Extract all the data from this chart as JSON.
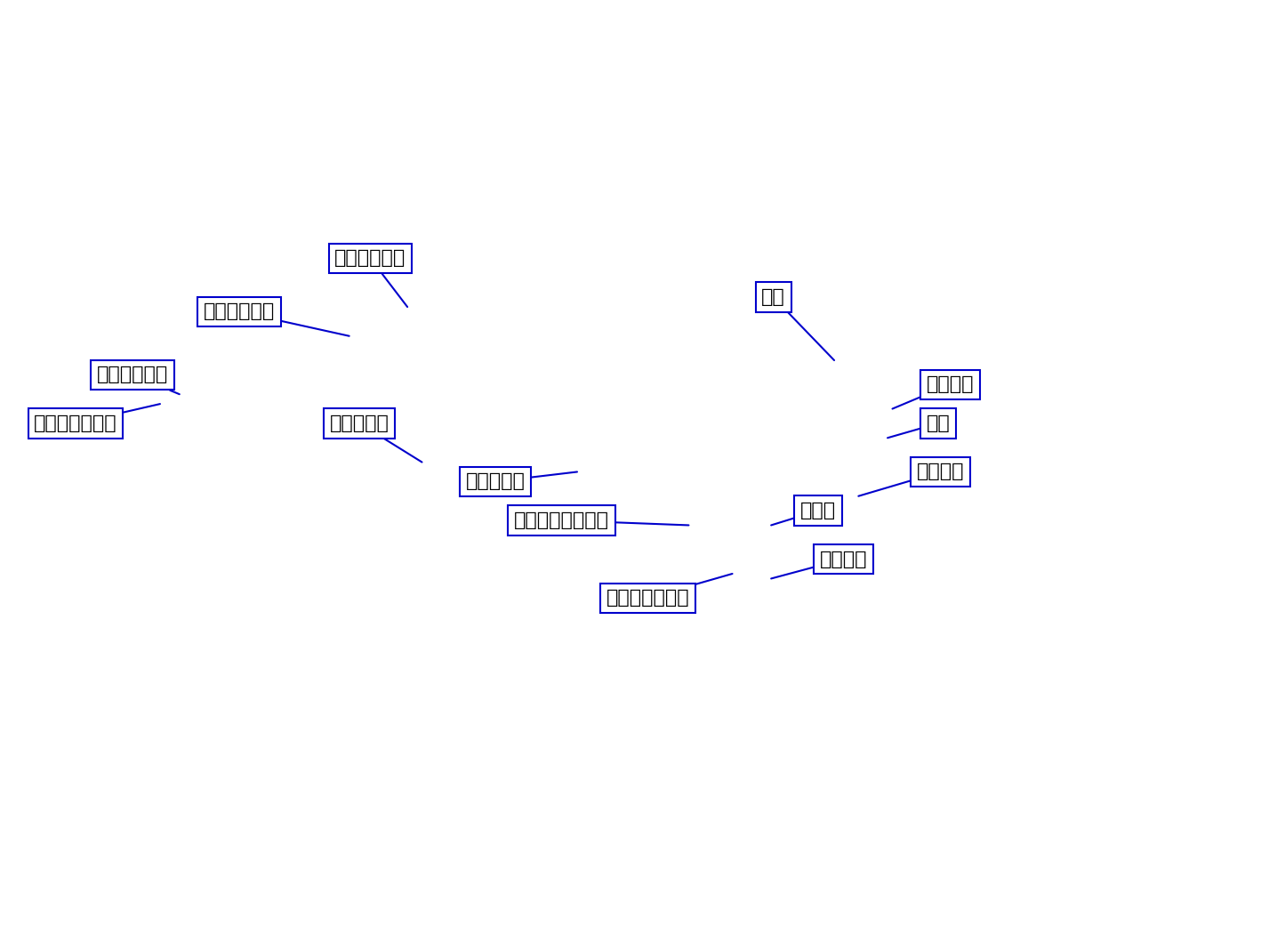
{
  "background_color": "#ffffff",
  "land_color": "#ffffff",
  "ocean_color": "#ffffff",
  "border_color_thick": "#000000",
  "border_color_thin": "#aaaaaa",
  "river_color": "#33aaff",
  "label_text_color": "#000000",
  "label_box_edge_color": "#0000cc",
  "label_box_face_color": "#ffffff",
  "arrow_color": "#0000cc",
  "map_extent_lon": [
    25,
    155
  ],
  "map_extent_lat": [
    -8,
    62
  ],
  "figsize": [
    14.18,
    10.5
  ],
  "dpi": 100,
  "fontsize": 16,
  "annotations": [
    {
      "label": "シルダリア川",
      "text_lon": 59.5,
      "text_lat": 48.5,
      "arrow_lon": 67.0,
      "arrow_lat": 43.5
    },
    {
      "label": "アムダリア川",
      "text_lon": 46.0,
      "text_lat": 43.0,
      "arrow_lon": 61.0,
      "arrow_lat": 40.5
    },
    {
      "label": "ティグリス川",
      "text_lon": 35.0,
      "text_lat": 36.5,
      "arrow_lon": 43.5,
      "arrow_lat": 34.5
    },
    {
      "label": "ユーフラテス川",
      "text_lon": 28.5,
      "text_lat": 31.5,
      "arrow_lon": 41.5,
      "arrow_lat": 33.5
    },
    {
      "label": "インダス川",
      "text_lon": 59.0,
      "text_lat": 31.5,
      "arrow_lon": 68.5,
      "arrow_lat": 27.5
    },
    {
      "label": "ガンジス川",
      "text_lon": 73.0,
      "text_lat": 25.5,
      "arrow_lon": 84.5,
      "arrow_lat": 26.5
    },
    {
      "label": "エーヤワディー川",
      "text_lon": 78.0,
      "text_lat": 21.5,
      "arrow_lon": 96.0,
      "arrow_lat": 21.0
    },
    {
      "label": "チャオプラヤ川",
      "text_lon": 87.5,
      "text_lat": 13.5,
      "arrow_lon": 100.5,
      "arrow_lat": 16.0
    },
    {
      "label": "黄河",
      "text_lon": 103.5,
      "text_lat": 44.5,
      "arrow_lon": 111.0,
      "arrow_lat": 38.0
    },
    {
      "label": "ホワイ川",
      "text_lon": 120.5,
      "text_lat": 35.5,
      "arrow_lon": 117.0,
      "arrow_lat": 33.0
    },
    {
      "label": "長江",
      "text_lon": 120.5,
      "text_lat": 31.5,
      "arrow_lon": 116.5,
      "arrow_lat": 30.0
    },
    {
      "label": "チュー川",
      "text_lon": 119.5,
      "text_lat": 26.5,
      "arrow_lon": 113.5,
      "arrow_lat": 24.0
    },
    {
      "label": "ホン川",
      "text_lon": 107.5,
      "text_lat": 22.5,
      "arrow_lon": 104.5,
      "arrow_lat": 21.0
    },
    {
      "label": "メコン川",
      "text_lon": 109.5,
      "text_lat": 17.5,
      "arrow_lon": 104.5,
      "arrow_lat": 15.5
    }
  ]
}
